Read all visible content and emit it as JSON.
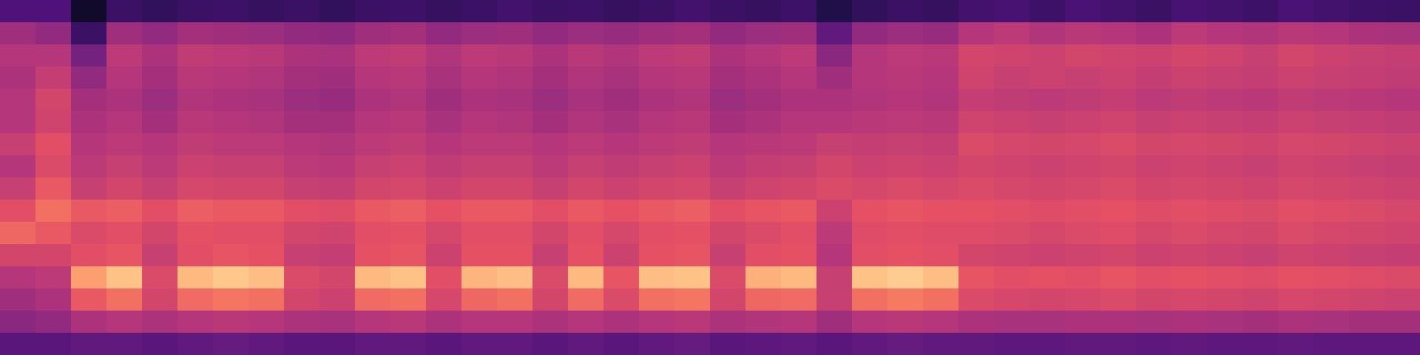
{
  "chart_data": {
    "type": "heatmap",
    "color": "magma",
    "tick_labels": false,
    "zlim": [
      0,
      100
    ],
    "cells": [
      [
        25,
        25,
        8,
        20,
        18,
        20,
        21,
        19,
        20,
        18,
        20,
        21,
        19,
        20,
        22,
        20,
        21,
        19,
        20,
        22,
        20,
        19,
        21,
        14,
        18,
        20,
        19,
        22,
        23,
        21,
        24,
        22,
        20,
        23,
        22,
        21,
        24,
        22,
        21,
        20
      ],
      [
        45,
        42,
        20,
        45,
        42,
        46,
        45,
        44,
        42,
        41,
        45,
        46,
        42,
        44,
        45,
        42,
        44,
        43,
        45,
        46,
        42,
        44,
        45,
        30,
        42,
        44,
        43,
        50,
        52,
        49,
        51,
        50,
        48,
        52,
        50,
        49,
        51,
        50,
        48,
        47
      ],
      [
        50,
        50,
        35,
        52,
        48,
        53,
        52,
        51,
        48,
        47,
        52,
        53,
        49,
        52,
        51,
        48,
        51,
        49,
        52,
        53,
        48,
        50,
        52,
        40,
        50,
        52,
        51,
        58,
        57,
        56,
        58,
        57,
        56,
        58,
        57,
        55,
        58,
        56,
        55,
        54
      ],
      [
        48,
        54,
        42,
        50,
        46,
        51,
        50,
        49,
        46,
        45,
        50,
        51,
        47,
        50,
        49,
        46,
        49,
        47,
        50,
        51,
        46,
        48,
        50,
        45,
        50,
        51,
        50,
        57,
        55,
        56,
        55,
        56,
        54,
        56,
        55,
        54,
        56,
        55,
        54,
        53
      ],
      [
        50,
        58,
        46,
        48,
        44,
        49,
        48,
        47,
        44,
        43,
        48,
        49,
        45,
        48,
        47,
        44,
        47,
        45,
        48,
        49,
        44,
        46,
        48,
        48,
        49,
        50,
        49,
        54,
        53,
        52,
        53,
        54,
        52,
        53,
        52,
        51,
        53,
        52,
        51,
        50
      ],
      [
        50,
        57,
        48,
        50,
        46,
        51,
        50,
        49,
        46,
        46,
        50,
        51,
        47,
        50,
        49,
        46,
        49,
        47,
        50,
        51,
        46,
        48,
        50,
        50,
        51,
        52,
        51,
        57,
        56,
        55,
        56,
        57,
        55,
        56,
        55,
        54,
        56,
        55,
        54,
        53
      ],
      [
        55,
        62,
        50,
        52,
        50,
        53,
        52,
        52,
        50,
        49,
        52,
        53,
        50,
        52,
        52,
        50,
        52,
        50,
        52,
        53,
        50,
        51,
        52,
        55,
        54,
        55,
        54,
        60,
        59,
        58,
        59,
        60,
        58,
        59,
        58,
        57,
        59,
        58,
        57,
        56
      ],
      [
        50,
        60,
        52,
        55,
        52,
        56,
        55,
        55,
        52,
        51,
        55,
        56,
        53,
        55,
        55,
        52,
        55,
        53,
        55,
        56,
        52,
        54,
        55,
        58,
        56,
        57,
        56,
        58,
        57,
        56,
        57,
        58,
        56,
        57,
        56,
        55,
        57,
        56,
        55,
        54
      ],
      [
        55,
        65,
        55,
        58,
        55,
        59,
        58,
        58,
        55,
        54,
        58,
        59,
        56,
        58,
        58,
        55,
        58,
        56,
        58,
        59,
        55,
        57,
        58,
        60,
        59,
        60,
        59,
        60,
        59,
        58,
        59,
        60,
        58,
        59,
        58,
        57,
        59,
        58,
        57,
        56
      ],
      [
        62,
        70,
        65,
        66,
        62,
        66,
        65,
        65,
        62,
        61,
        65,
        66,
        63,
        65,
        65,
        62,
        65,
        63,
        65,
        66,
        62,
        64,
        65,
        56,
        63,
        64,
        63,
        63,
        62,
        61,
        62,
        63,
        61,
        62,
        61,
        60,
        62,
        61,
        60,
        59
      ],
      [
        68,
        65,
        60,
        62,
        58,
        63,
        62,
        62,
        58,
        57,
        62,
        63,
        59,
        62,
        62,
        58,
        62,
        59,
        62,
        63,
        58,
        60,
        62,
        52,
        61,
        62,
        61,
        61,
        60,
        59,
        60,
        61,
        59,
        60,
        59,
        58,
        60,
        59,
        58,
        57
      ],
      [
        58,
        58,
        62,
        64,
        55,
        62,
        64,
        63,
        55,
        54,
        63,
        64,
        56,
        63,
        63,
        55,
        63,
        56,
        63,
        64,
        55,
        62,
        63,
        50,
        62,
        63,
        62,
        58,
        57,
        56,
        57,
        58,
        56,
        57,
        56,
        55,
        57,
        56,
        55,
        54
      ],
      [
        50,
        52,
        80,
        88,
        60,
        86,
        89,
        87,
        60,
        58,
        86,
        88,
        62,
        85,
        87,
        60,
        86,
        64,
        87,
        88,
        60,
        84,
        86,
        55,
        88,
        90,
        87,
        64,
        62,
        63,
        62,
        64,
        62,
        63,
        62,
        61,
        63,
        62,
        61,
        60
      ],
      [
        45,
        48,
        65,
        70,
        58,
        69,
        71,
        70,
        58,
        56,
        69,
        70,
        59,
        68,
        70,
        58,
        69,
        60,
        70,
        71,
        58,
        68,
        69,
        55,
        70,
        72,
        70,
        60,
        59,
        58,
        59,
        60,
        58,
        59,
        58,
        57,
        59,
        58,
        57,
        56
      ],
      [
        40,
        42,
        48,
        50,
        48,
        50,
        51,
        50,
        48,
        47,
        50,
        51,
        48,
        50,
        50,
        48,
        50,
        48,
        50,
        51,
        48,
        49,
        50,
        45,
        50,
        51,
        50,
        48,
        47,
        47,
        48,
        48,
        47,
        48,
        47,
        46,
        48,
        47,
        46,
        46
      ],
      [
        28,
        28,
        30,
        30,
        28,
        30,
        31,
        30,
        28,
        28,
        30,
        30,
        28,
        30,
        30,
        28,
        30,
        28,
        30,
        31,
        28,
        29,
        30,
        28,
        30,
        31,
        30,
        30,
        29,
        29,
        30,
        30,
        29,
        30,
        29,
        29,
        30,
        29,
        29,
        29
      ]
    ]
  }
}
